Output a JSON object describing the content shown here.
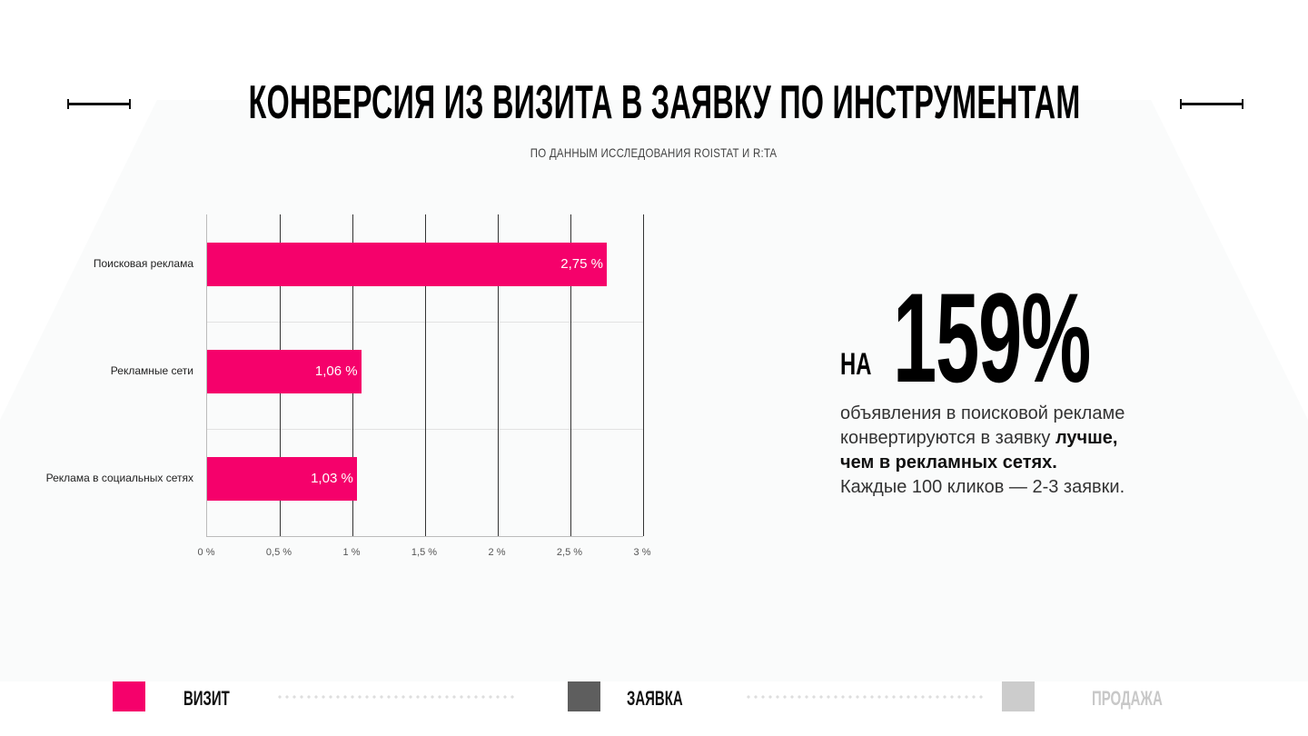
{
  "header": {
    "title": "КОНВЕРСИЯ ИЗ ВИЗИТА В ЗАЯВКУ ПО ИНСТРУМЕНТАМ",
    "subtitle": "ПО ДАННЫМ ИССЛЕДОВАНИЯ ROISTAT И R:TA"
  },
  "chart_data": {
    "type": "bar",
    "orientation": "horizontal",
    "title": "Конверсия из визита в заявку по инструментам",
    "categories": [
      "Поисковая реклама",
      "Рекламные сети",
      "Реклама в социальных сетях"
    ],
    "values": [
      2.75,
      1.06,
      1.03
    ],
    "value_labels": [
      "2,75 %",
      "1,06 %",
      "1,03 %"
    ],
    "xlabel": "",
    "ylabel": "",
    "xlim": [
      0,
      3
    ],
    "x_ticks": [
      "0 %",
      "0,5 %",
      "1 %",
      "1,5 %",
      "2 %",
      "2,5 %",
      "3 %"
    ],
    "bar_color": "#f5016b",
    "grid": true,
    "legend": false
  },
  "stat": {
    "prefix": "НА",
    "value": "159%",
    "line1": "объявления в поисковой рекламе",
    "line2": "конвертируются в заявку ",
    "line2_bold": "лучше,",
    "line3_bold": "чем в рекламных сетях.",
    "line4": "Каждые 100 кликов — 2-3 заявки."
  },
  "funnel": {
    "steps": [
      {
        "label": "ВИЗИТ",
        "color": "#f5016b",
        "text_color": "#111111"
      },
      {
        "label": "ЗАЯВКА",
        "color": "#5e5e5e",
        "text_color": "#111111"
      },
      {
        "label": "ПРОДАЖА",
        "color": "#cccccc",
        "text_color": "#c8c8c8"
      }
    ]
  }
}
